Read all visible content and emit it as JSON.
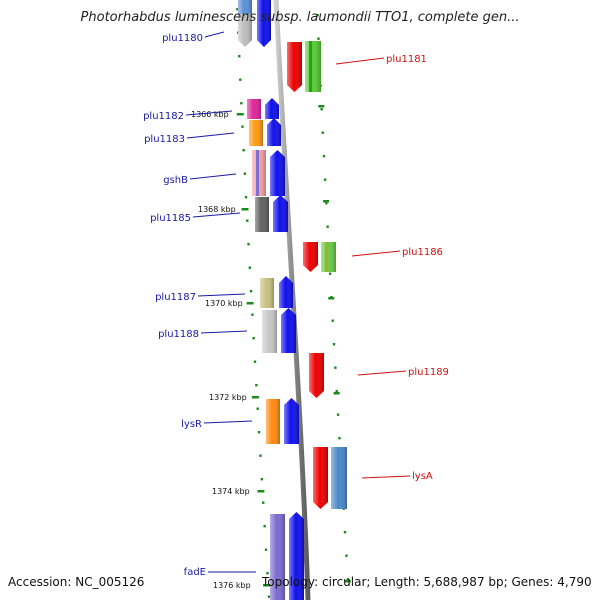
{
  "title": "Photorhabdus luminescens subsp. laumondii TTO1, complete gen...",
  "accession": "Accession: NC_005126",
  "topology": "Topology: circular; Length: 5,688,987 bp; Genes: 4,790",
  "colors": {
    "backbone": "#8a8a8a",
    "tick": "#1e8a1e",
    "left_label": "#1a1aa6",
    "right_label": "#cc1111",
    "cds_forward": "#0000ee",
    "cds_reverse": "#ee0000"
  },
  "ticks": [
    {
      "label": "1366 kbp"
    },
    {
      "label": "1368 kbp"
    },
    {
      "label": "1370 kbp"
    },
    {
      "label": "1372 kbp"
    },
    {
      "label": "1374 kbp"
    },
    {
      "label": "1376 kbp"
    }
  ],
  "genes_left": [
    {
      "name": "plu1180"
    },
    {
      "name": "plu1182"
    },
    {
      "name": "plu1183"
    },
    {
      "name": "gshB"
    },
    {
      "name": "plu1185"
    },
    {
      "name": "plu1187"
    },
    {
      "name": "plu1188"
    },
    {
      "name": "lysR"
    },
    {
      "name": "fadE"
    }
  ],
  "genes_right": [
    {
      "name": "plu1181"
    },
    {
      "name": "plu1186"
    },
    {
      "name": "plu1189"
    },
    {
      "name": "lysA"
    }
  ]
}
